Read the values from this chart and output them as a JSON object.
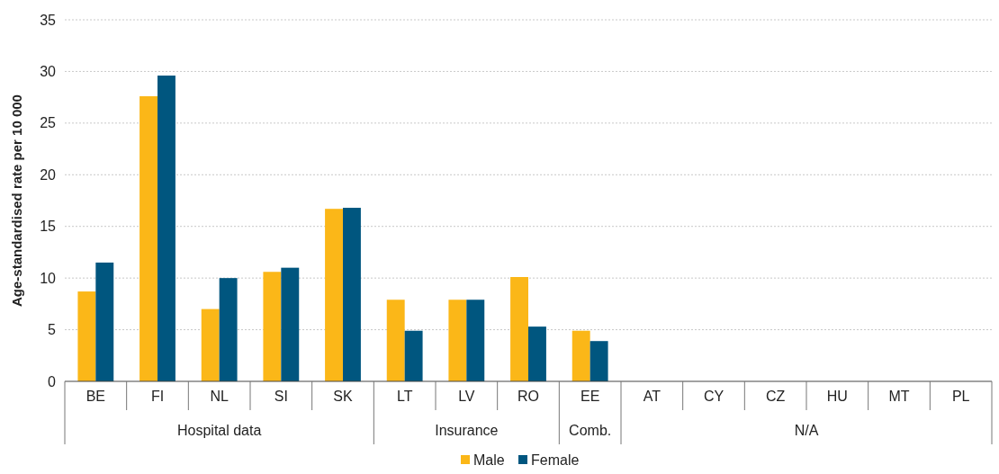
{
  "chart_data": {
    "type": "bar",
    "ylabel": "Age-standardised rate per 10 000",
    "categories": [
      "BE",
      "FI",
      "NL",
      "SI",
      "SK",
      "LT",
      "LV",
      "RO",
      "EE",
      "AT",
      "CY",
      "CZ",
      "HU",
      "MT",
      "PL"
    ],
    "series": [
      {
        "name": "Male",
        "color": "#fbb718",
        "values": [
          8.7,
          27.6,
          7.0,
          10.6,
          16.7,
          7.9,
          7.9,
          10.1,
          4.9,
          null,
          null,
          null,
          null,
          null,
          null
        ]
      },
      {
        "name": "Female",
        "color": "#00567f",
        "values": [
          11.5,
          29.6,
          10.0,
          11.0,
          16.8,
          4.9,
          7.9,
          5.3,
          3.9,
          null,
          null,
          null,
          null,
          null,
          null
        ]
      }
    ],
    "ylim": [
      0,
      35
    ],
    "yticks": [
      0,
      5,
      10,
      15,
      20,
      25,
      30,
      35
    ],
    "grid": "y",
    "legend": "bottom",
    "annotations": [
      "Hospital data",
      "Insurance",
      "Comb.",
      "N/A"
    ]
  }
}
